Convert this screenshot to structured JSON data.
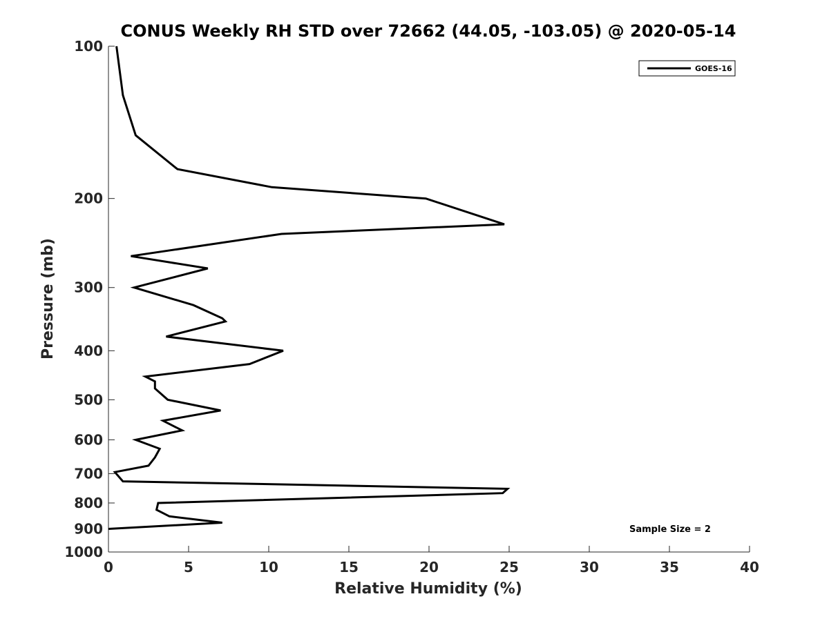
{
  "chart_data": {
    "type": "line",
    "title": "CONUS Weekly RH STD over 72662 (44.05, -103.05) @ 2020-05-14",
    "xlabel": "Relative Humidity (%)",
    "ylabel": "Pressure (mb)",
    "xlim": [
      0,
      40
    ],
    "ylim": [
      100,
      1000
    ],
    "y_scale": "log",
    "y_reversed": true,
    "x_ticks": [
      0,
      5,
      10,
      15,
      20,
      25,
      30,
      35,
      40
    ],
    "y_ticks": [
      100,
      200,
      300,
      400,
      500,
      600,
      700,
      800,
      900,
      1000
    ],
    "grid": false,
    "legend_position": "top-right",
    "annotation": "Sample Size = 2",
    "series": [
      {
        "name": "GOES-16",
        "color": "#000000",
        "points": [
          {
            "x": 0.5,
            "p": 100
          },
          {
            "x": 0.9,
            "p": 125
          },
          {
            "x": 1.7,
            "p": 150
          },
          {
            "x": 4.3,
            "p": 175
          },
          {
            "x": 10.2,
            "p": 190
          },
          {
            "x": 19.8,
            "p": 200
          },
          {
            "x": 24.7,
            "p": 225
          },
          {
            "x": 10.8,
            "p": 235
          },
          {
            "x": 1.4,
            "p": 260
          },
          {
            "x": 6.2,
            "p": 275
          },
          {
            "x": 1.6,
            "p": 300
          },
          {
            "x": 5.3,
            "p": 325
          },
          {
            "x": 7.1,
            "p": 345
          },
          {
            "x": 7.3,
            "p": 350
          },
          {
            "x": 3.6,
            "p": 375
          },
          {
            "x": 10.9,
            "p": 400
          },
          {
            "x": 8.8,
            "p": 425
          },
          {
            "x": 2.3,
            "p": 450
          },
          {
            "x": 2.9,
            "p": 460
          },
          {
            "x": 2.9,
            "p": 475
          },
          {
            "x": 3.7,
            "p": 500
          },
          {
            "x": 7.0,
            "p": 525
          },
          {
            "x": 3.4,
            "p": 550
          },
          {
            "x": 4.6,
            "p": 575
          },
          {
            "x": 1.7,
            "p": 600
          },
          {
            "x": 3.2,
            "p": 625
          },
          {
            "x": 2.9,
            "p": 650
          },
          {
            "x": 2.5,
            "p": 675
          },
          {
            "x": 0.4,
            "p": 695
          },
          {
            "x": 0.9,
            "p": 725
          },
          {
            "x": 24.9,
            "p": 750
          },
          {
            "x": 24.6,
            "p": 765
          },
          {
            "x": 3.1,
            "p": 800
          },
          {
            "x": 3.0,
            "p": 825
          },
          {
            "x": 3.8,
            "p": 850
          },
          {
            "x": 7.1,
            "p": 875
          },
          {
            "x": 0.0,
            "p": 900
          }
        ]
      }
    ]
  }
}
